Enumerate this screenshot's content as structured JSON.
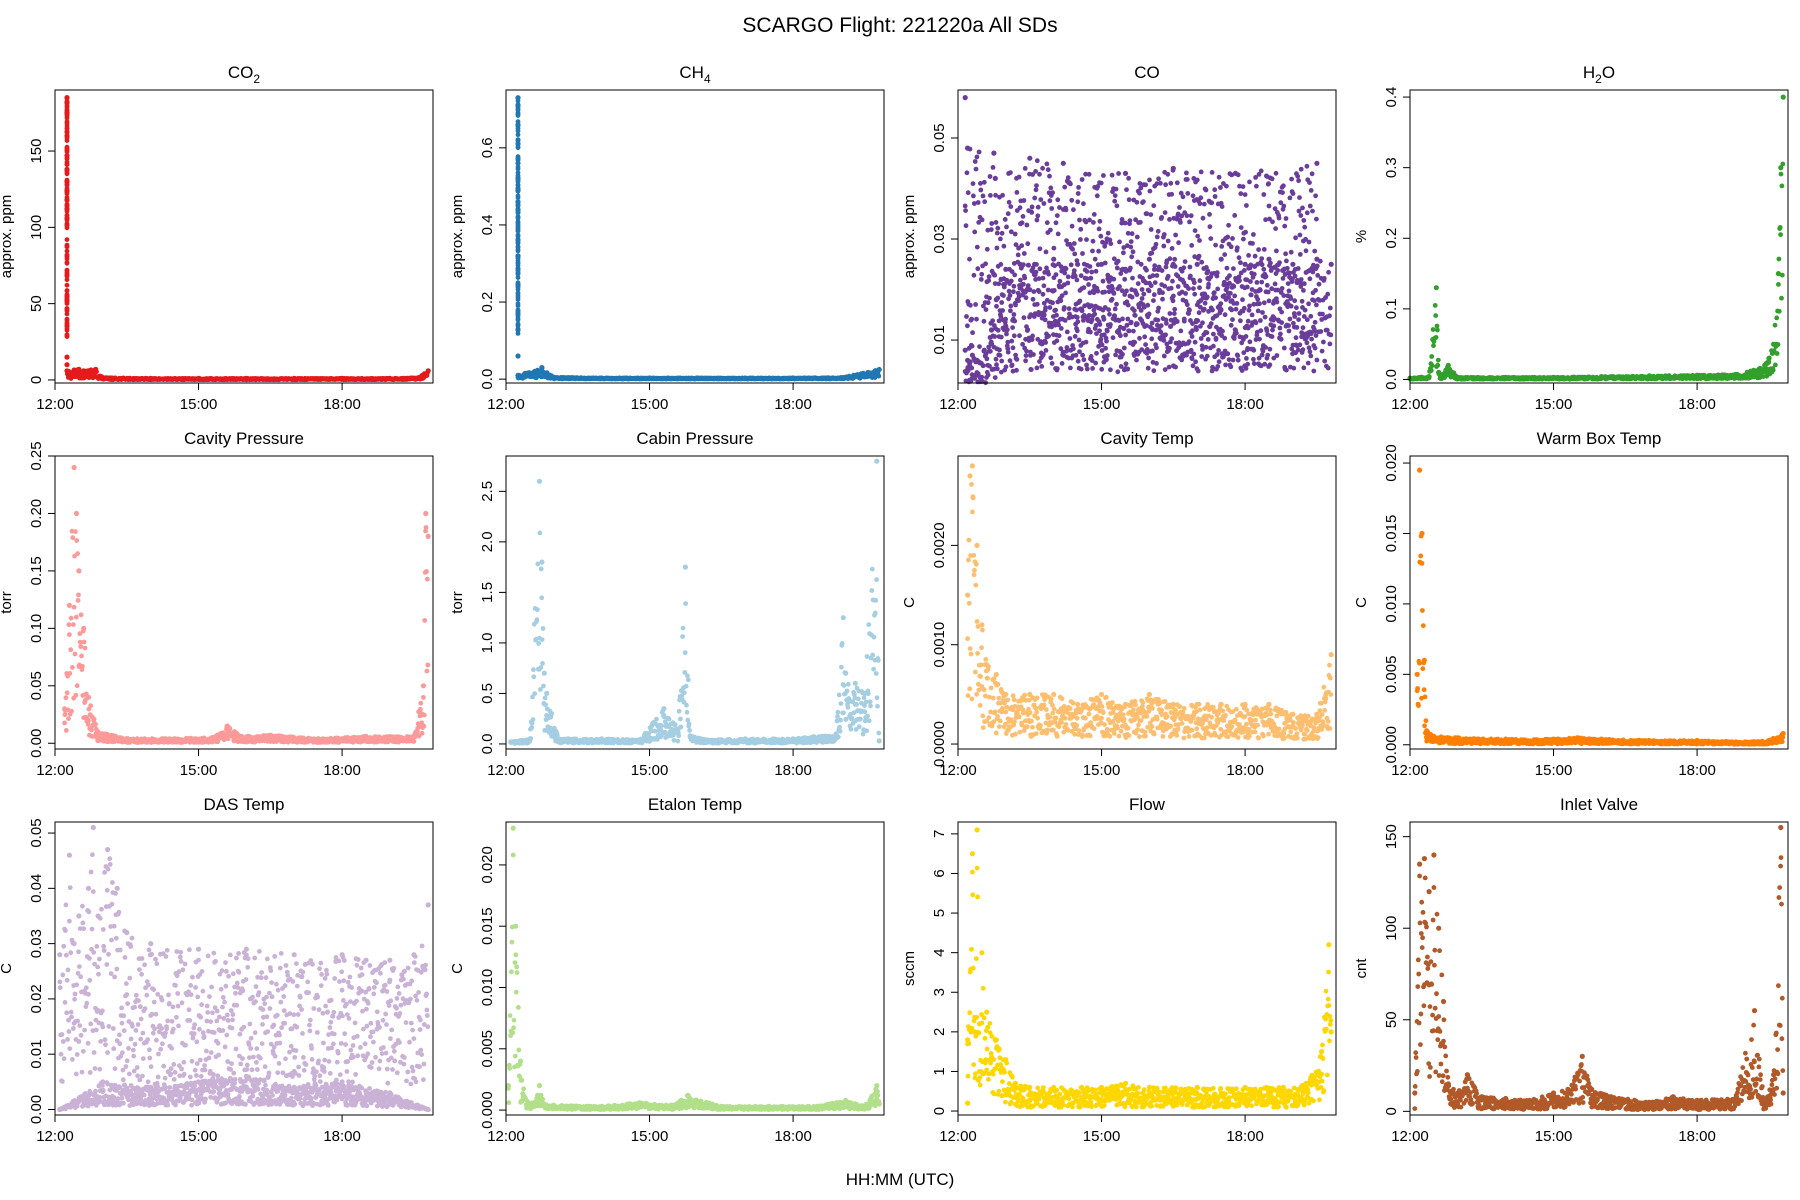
{
  "figure": {
    "title": "SCARGO Flight: 221220a  All SDs",
    "xlabel": "HH:MM (UTC)"
  },
  "chart_data": [
    {
      "type": "scatter",
      "title_main": "CO",
      "title_sub": "2",
      "title_tail": "",
      "ylabel": "approx. ppm",
      "color": "#e41a1c",
      "xlim": [
        12.0,
        19.9
      ],
      "x_ticks": [
        12,
        15,
        18
      ],
      "x_tick_labels": [
        "12:00",
        "15:00",
        "18:00"
      ],
      "ylim": [
        -2,
        190
      ],
      "y_ticks": [
        0,
        50,
        100,
        150
      ],
      "y_tick_labels": [
        "0",
        "50",
        "100",
        "150"
      ],
      "series": [
        {
          "x": [
            12.25,
            12.25,
            12.25,
            12.25,
            12.25,
            12.25,
            12.25,
            12.25,
            12.25,
            12.25,
            12.25,
            12.25,
            12.25
          ],
          "y": [
            185,
            182,
            175,
            160,
            147,
            138,
            130,
            124,
            118,
            112,
            106,
            15,
            10
          ]
        },
        {
          "x": [
            12.25,
            12.4,
            12.5,
            12.6,
            12.75,
            12.85,
            13.0,
            14.0,
            15.0,
            16.0,
            17.0,
            18.0,
            19.0,
            19.6,
            19.8
          ],
          "y": [
            6,
            6.5,
            7,
            6,
            6.5,
            7,
            1.5,
            1,
            1,
            1,
            1,
            1,
            1,
            1.5,
            6
          ]
        }
      ]
    },
    {
      "type": "scatter",
      "title_main": "CH",
      "title_sub": "4",
      "title_tail": "",
      "ylabel": "approx. ppm",
      "color": "#1f78b4",
      "xlim": [
        12.0,
        19.9
      ],
      "x_ticks": [
        12,
        15,
        18
      ],
      "x_tick_labels": [
        "12:00",
        "15:00",
        "18:00"
      ],
      "ylim": [
        -0.01,
        0.75
      ],
      "y_ticks": [
        0,
        0.2,
        0.4,
        0.6
      ],
      "y_tick_labels": [
        "0.0",
        "0.2",
        "0.4",
        "0.6"
      ],
      "series": [
        {
          "x": [
            12.25,
            12.25,
            12.25,
            12.25,
            12.25,
            12.25,
            12.25,
            12.25,
            12.25,
            12.25,
            12.25
          ],
          "y": [
            0.73,
            0.71,
            0.66,
            0.61,
            0.56,
            0.52,
            0.49,
            0.46,
            0.44,
            0.32,
            0.06
          ]
        },
        {
          "x": [
            12.25,
            12.4,
            12.6,
            12.75,
            13.0,
            14.0,
            15.0,
            16.0,
            17.0,
            18.0,
            19.0,
            19.8
          ],
          "y": [
            0.01,
            0.015,
            0.02,
            0.03,
            0.005,
            0.003,
            0.003,
            0.003,
            0.003,
            0.003,
            0.004,
            0.025
          ]
        }
      ]
    },
    {
      "type": "scatter",
      "title_main": "CO",
      "title_sub": "",
      "title_tail": "",
      "ylabel": "approx. ppm",
      "color": "#6a3d9a",
      "xlim": [
        12.0,
        19.9
      ],
      "x_ticks": [
        12,
        15,
        18
      ],
      "x_tick_labels": [
        "12:00",
        "15:00",
        "18:00"
      ],
      "ylim": [
        0.0015,
        0.0595
      ],
      "y_ticks": [
        0.01,
        0.03,
        0.05
      ],
      "y_tick_labels": [
        "0.01",
        "0.03",
        "0.05"
      ],
      "series": [
        {
          "x": [
            12.15,
            12.2,
            12.3,
            12.4,
            12.55,
            12.7,
            12.8,
            12.9,
            13.0,
            13.3,
            13.6,
            14.0,
            14.5,
            15.0,
            15.5,
            16.0,
            16.5,
            17.0,
            17.5,
            18.0,
            18.5,
            19.0,
            19.5,
            19.8
          ],
          "y": [
            0.008,
            0.006,
            0.007,
            0.006,
            0.008,
            0.012,
            0.018,
            0.022,
            0.024,
            0.025,
            0.025,
            0.026,
            0.025,
            0.025,
            0.024,
            0.026,
            0.025,
            0.025,
            0.026,
            0.025,
            0.026,
            0.025,
            0.026,
            0.025
          ]
        },
        {
          "x": [
            12.15,
            12.2,
            12.75,
            12.78,
            13.5,
            14.2,
            15.5,
            16.5,
            17.8,
            19.5
          ],
          "y": [
            0.058,
            0.048,
            0.047,
            0.042,
            0.046,
            0.045,
            0.043,
            0.044,
            0.043,
            0.045
          ]
        }
      ]
    },
    {
      "type": "scatter",
      "title_main": "H",
      "title_sub": "2",
      "title_tail": "O",
      "ylabel": "%",
      "color": "#33a02c",
      "xlim": [
        12.0,
        19.9
      ],
      "x_ticks": [
        12,
        15,
        18
      ],
      "x_tick_labels": [
        "12:00",
        "15:00",
        "18:00"
      ],
      "ylim": [
        -0.005,
        0.41
      ],
      "y_ticks": [
        0,
        0.1,
        0.2,
        0.3,
        0.4
      ],
      "y_tick_labels": [
        "0.0",
        "0.1",
        "0.2",
        "0.3",
        "0.4"
      ],
      "series": [
        {
          "x": [
            12.0,
            12.4,
            12.55,
            12.6,
            12.65,
            12.8,
            13.0,
            14.0,
            15.0,
            16.0,
            17.0,
            18.0,
            18.8,
            19.3,
            19.5,
            19.6,
            19.7,
            19.75,
            19.8
          ],
          "y": [
            0.002,
            0.004,
            0.13,
            0.01,
            0.005,
            0.02,
            0.003,
            0.003,
            0.003,
            0.004,
            0.005,
            0.006,
            0.007,
            0.015,
            0.03,
            0.05,
            0.15,
            0.3,
            0.4
          ]
        }
      ]
    },
    {
      "type": "scatter",
      "title_main": "Cavity Pressure",
      "title_sub": "",
      "title_tail": "",
      "ylabel": "torr",
      "color": "#fb9a99",
      "xlim": [
        12.0,
        19.9
      ],
      "x_ticks": [
        12,
        15,
        18
      ],
      "x_tick_labels": [
        "12:00",
        "15:00",
        "18:00"
      ],
      "ylim": [
        -0.005,
        0.25
      ],
      "y_ticks": [
        0,
        0.05,
        0.1,
        0.15,
        0.2,
        0.25
      ],
      "y_tick_labels": [
        "0.00",
        "0.05",
        "0.10",
        "0.15",
        "0.20",
        "0.25"
      ],
      "series": [
        {
          "x": [
            12.2,
            12.3,
            12.4,
            12.45,
            12.5,
            12.6,
            12.7,
            12.9,
            13.5,
            14.5,
            15.3,
            15.6,
            15.9,
            16.5,
            17.5,
            18.5,
            19.5,
            19.7,
            19.75,
            19.8
          ],
          "y": [
            0.03,
            0.12,
            0.24,
            0.2,
            0.15,
            0.1,
            0.04,
            0.01,
            0.004,
            0.004,
            0.005,
            0.015,
            0.006,
            0.007,
            0.004,
            0.006,
            0.006,
            0.05,
            0.2,
            0.18
          ]
        }
      ]
    },
    {
      "type": "scatter",
      "title_main": "Cabin Pressure",
      "title_sub": "",
      "title_tail": "",
      "ylabel": "torr",
      "color": "#a6cee3",
      "xlim": [
        12.0,
        19.9
      ],
      "x_ticks": [
        12,
        15,
        18
      ],
      "x_tick_labels": [
        "12:00",
        "15:00",
        "18:00"
      ],
      "ylim": [
        -0.05,
        2.85
      ],
      "y_ticks": [
        0,
        0.5,
        1.0,
        1.5,
        2.0,
        2.5
      ],
      "y_tick_labels": [
        "0.0",
        "0.5",
        "1.0",
        "1.5",
        "2.0",
        "2.5"
      ],
      "series": [
        {
          "x": [
            12.1,
            12.5,
            12.7,
            12.75,
            12.8,
            12.85,
            12.95,
            13.1,
            13.3,
            14.0,
            14.8,
            15.3,
            15.6,
            15.75,
            15.85,
            16.2,
            17.0,
            18.0,
            18.9,
            19.05,
            19.1,
            19.3,
            19.5,
            19.75,
            19.8
          ],
          "y": [
            0.02,
            0.05,
            2.6,
            1.8,
            0.7,
            0.5,
            0.3,
            0.05,
            0.05,
            0.05,
            0.04,
            0.35,
            0.15,
            1.75,
            0.08,
            0.04,
            0.05,
            0.05,
            0.1,
            1.25,
            0.7,
            0.6,
            0.5,
            2.8,
            0.03
          ]
        }
      ]
    },
    {
      "type": "scatter",
      "title_main": "Cavity Temp",
      "title_sub": "",
      "title_tail": "",
      "ylabel": "C",
      "color": "#fdbf6f",
      "xlim": [
        12.0,
        19.9
      ],
      "x_ticks": [
        12,
        15,
        18
      ],
      "x_tick_labels": [
        "12:00",
        "15:00",
        "18:00"
      ],
      "ylim": [
        -5e-05,
        0.0029
      ],
      "y_ticks": [
        0,
        0.001,
        0.002
      ],
      "y_tick_labels": [
        "0.0000",
        "0.0010",
        "0.0020"
      ],
      "series": [
        {
          "x": [
            12.2,
            12.25,
            12.3,
            12.4,
            12.5,
            12.6,
            12.8,
            13.0,
            13.5,
            14.0,
            14.5,
            15.0,
            15.5,
            16.0,
            16.5,
            17.0,
            17.5,
            18.0,
            18.5,
            19.0,
            19.5,
            19.8
          ],
          "y": [
            0.0015,
            0.0027,
            0.0028,
            0.002,
            0.0012,
            0.0008,
            0.0007,
            0.0005,
            0.0005,
            0.0005,
            0.0004,
            0.0005,
            0.0004,
            0.0005,
            0.0004,
            0.0004,
            0.0004,
            0.0004,
            0.0004,
            0.0003,
            0.0003,
            0.0009
          ]
        }
      ]
    },
    {
      "type": "scatter",
      "title_main": "Warm Box Temp",
      "title_sub": "",
      "title_tail": "",
      "ylabel": "C",
      "color": "#ff7f00",
      "xlim": [
        12.0,
        19.9
      ],
      "x_ticks": [
        12,
        15,
        18
      ],
      "x_tick_labels": [
        "12:00",
        "15:00",
        "18:00"
      ],
      "ylim": [
        -0.0003,
        0.0205
      ],
      "y_ticks": [
        0,
        0.005,
        0.01,
        0.015,
        0.02
      ],
      "y_tick_labels": [
        "0.000",
        "0.005",
        "0.010",
        "0.015",
        "0.020"
      ],
      "series": [
        {
          "x": [
            12.15,
            12.2,
            12.25,
            12.3,
            12.35,
            12.5,
            13.0,
            14.0,
            15.0,
            15.5,
            16.0,
            17.0,
            18.0,
            19.0,
            19.5,
            19.8
          ],
          "y": [
            0.005,
            0.0195,
            0.015,
            0.006,
            0.001,
            0.0006,
            0.0005,
            0.0004,
            0.0004,
            0.0005,
            0.0004,
            0.0003,
            0.0003,
            0.0002,
            0.0003,
            0.0008
          ]
        }
      ]
    },
    {
      "type": "scatter",
      "title_main": "DAS Temp",
      "title_sub": "",
      "title_tail": "",
      "ylabel": "C",
      "color": "#cab2d6",
      "xlim": [
        12.0,
        19.9
      ],
      "x_ticks": [
        12,
        15,
        18
      ],
      "x_tick_labels": [
        "12:00",
        "15:00",
        "18:00"
      ],
      "ylim": [
        -0.001,
        0.052
      ],
      "y_ticks": [
        0,
        0.01,
        0.02,
        0.03,
        0.04,
        0.05
      ],
      "y_tick_labels": [
        "0.00",
        "0.01",
        "0.02",
        "0.03",
        "0.04",
        "0.05"
      ],
      "series": [
        {
          "x": [
            12.1,
            12.3,
            12.4,
            12.5,
            12.7,
            12.8,
            12.9,
            13.1,
            13.3,
            13.5,
            14.0,
            15.0,
            16.0,
            17.0,
            18.0,
            18.5,
            19.0,
            19.3,
            19.5,
            19.8
          ],
          "y": [
            0.028,
            0.046,
            0.03,
            0.035,
            0.04,
            0.051,
            0.035,
            0.047,
            0.04,
            0.032,
            0.03,
            0.029,
            0.029,
            0.028,
            0.028,
            0.027,
            0.027,
            0.025,
            0.028,
            0.037
          ]
        },
        {
          "x": [
            12.1,
            13.0,
            14.0,
            15.0,
            16.0,
            17.0,
            18.0,
            19.0,
            19.8
          ],
          "y": [
            0.0,
            0.005,
            0.004,
            0.005,
            0.006,
            0.004,
            0.005,
            0.003,
            0.0
          ]
        }
      ]
    },
    {
      "type": "scatter",
      "title_main": "Etalon Temp",
      "title_sub": "",
      "title_tail": "",
      "ylabel": "C",
      "color": "#b2df8a",
      "xlim": [
        12.0,
        19.9
      ],
      "x_ticks": [
        12,
        15,
        18
      ],
      "x_tick_labels": [
        "12:00",
        "15:00",
        "18:00"
      ],
      "ylim": [
        -0.0004,
        0.0235
      ],
      "y_ticks": [
        0,
        0.005,
        0.01,
        0.015,
        0.02
      ],
      "y_tick_labels": [
        "0.000",
        "0.005",
        "0.010",
        "0.015",
        "0.020"
      ],
      "series": [
        {
          "x": [
            12.05,
            12.15,
            12.2,
            12.3,
            12.4,
            12.6,
            12.7,
            12.8,
            13.0,
            14.0,
            14.8,
            15.5,
            15.8,
            16.5,
            17.5,
            18.5,
            19.1,
            19.5,
            19.75,
            19.8
          ],
          "y": [
            0.002,
            0.023,
            0.015,
            0.004,
            0.001,
            0.0005,
            0.002,
            0.0005,
            0.0004,
            0.0003,
            0.0006,
            0.0004,
            0.0012,
            0.0003,
            0.0003,
            0.0003,
            0.0008,
            0.0003,
            0.002,
            0.0005
          ]
        }
      ]
    },
    {
      "type": "scatter",
      "title_main": "Flow",
      "title_sub": "",
      "title_tail": "",
      "ylabel": "sccm",
      "color": "#ffd700",
      "xlim": [
        12.0,
        19.9
      ],
      "x_ticks": [
        12,
        15,
        18
      ],
      "x_tick_labels": [
        "12:00",
        "15:00",
        "18:00"
      ],
      "ylim": [
        -0.1,
        7.3
      ],
      "y_ticks": [
        0,
        1,
        2,
        3,
        4,
        5,
        6,
        7
      ],
      "y_tick_labels": [
        "0",
        "1",
        "2",
        "3",
        "4",
        "5",
        "6",
        "7"
      ],
      "series": [
        {
          "x": [
            12.2,
            12.3,
            12.35,
            12.4,
            12.45,
            12.5,
            12.6,
            12.8,
            13.0,
            13.2,
            13.5,
            14.0,
            15.0,
            15.5,
            16.0,
            17.0,
            18.0,
            18.8,
            19.2,
            19.4,
            19.6,
            19.75,
            19.8
          ],
          "y": [
            1.8,
            6.5,
            2.0,
            7.1,
            2.2,
            4.0,
            2.5,
            1.8,
            1.3,
            0.7,
            0.6,
            0.6,
            0.6,
            0.7,
            0.6,
            0.6,
            0.6,
            0.6,
            0.65,
            0.9,
            1.5,
            4.2,
            2.0
          ]
        },
        {
          "x": [
            12.2
          ],
          "y": [
            0.2
          ]
        }
      ]
    },
    {
      "type": "scatter",
      "title_main": "Inlet Valve",
      "title_sub": "",
      "title_tail": "",
      "ylabel": "cnt",
      "color": "#b15928",
      "xlim": [
        12.0,
        19.9
      ],
      "x_ticks": [
        12,
        15,
        18
      ],
      "x_tick_labels": [
        "12:00",
        "15:00",
        "18:00"
      ],
      "ylim": [
        -2,
        158
      ],
      "y_ticks": [
        0,
        50,
        100,
        150
      ],
      "y_tick_labels": [
        "0",
        "50",
        "100",
        "150"
      ],
      "series": [
        {
          "x": [
            12.1,
            12.2,
            12.3,
            12.4,
            12.5,
            12.6,
            12.7,
            12.8,
            13.0,
            13.2,
            13.5,
            14.0,
            14.5,
            15.0,
            15.3,
            15.6,
            15.8,
            16.2,
            17.0,
            17.5,
            18.0,
            18.8,
            19.2,
            19.4,
            19.6,
            19.75,
            19.8
          ],
          "y": [
            10,
            135,
            138,
            120,
            140,
            100,
            60,
            15,
            10,
            20,
            8,
            7,
            6,
            10,
            12,
            30,
            12,
            8,
            5,
            8,
            6,
            7,
            55,
            5,
            20,
            155,
            10
          ]
        }
      ]
    }
  ]
}
